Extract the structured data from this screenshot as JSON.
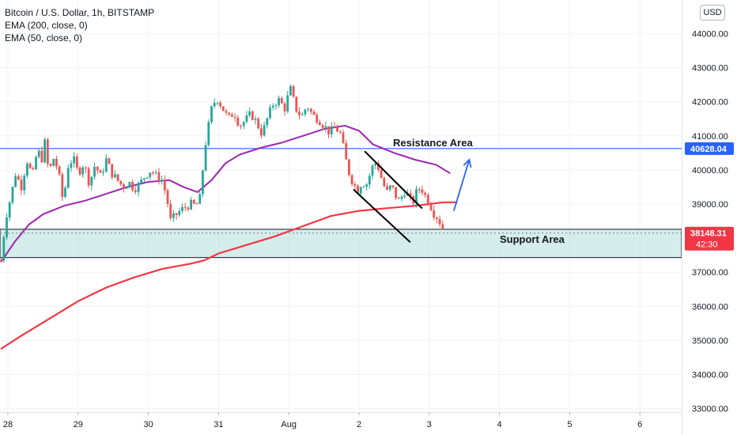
{
  "legend": {
    "title": "Bitcoin / U.S. Dollar, 1h, BITSTAMP",
    "ema200": "EMA (200, close, 0)",
    "ema50": "EMA (50, close, 0)"
  },
  "currency_button": "USD",
  "colors": {
    "up": "#26a69a",
    "down": "#ef5350",
    "ema200": "#f23645",
    "ema50": "#9c27b0",
    "resistance_line": "#2962ff",
    "support_fill": "#b2dfdb",
    "arrow": "#2962ff",
    "price_tag": "#f23645",
    "resistance_tag": "#2962ff"
  },
  "price_tags": {
    "resistance": "40628.04",
    "current_price": "38148.31",
    "countdown": "42:30"
  },
  "annotations": {
    "resistance": "Resistance Area",
    "support": "Support Area"
  },
  "chart_data": {
    "type": "candlestick",
    "x_labels": [
      "28",
      "29",
      "30",
      "31",
      "Aug",
      "2",
      "3",
      "4",
      "5",
      "6"
    ],
    "y_ticks": [
      33000,
      34000,
      35000,
      36000,
      37000,
      38000,
      39000,
      40000,
      41000,
      42000,
      43000,
      44000
    ],
    "y_tick_labels": [
      "33000.00",
      "34000.00",
      "35000.00",
      "36000.00",
      "37000.00",
      "38000.00",
      "39000.00",
      "40000.00",
      "41000.00",
      "42000.00",
      "43000.00",
      "44000.00"
    ],
    "ylim": [
      32800,
      44500
    ],
    "resistance_level": 40628.04,
    "support_zone": [
      37430,
      38260
    ],
    "current_price": 38148.31,
    "price_path": [
      [
        27.9,
        37350
      ],
      [
        27.97,
        38600
      ],
      [
        28.04,
        39200
      ],
      [
        28.11,
        39900
      ],
      [
        28.19,
        39500
      ],
      [
        28.27,
        40300
      ],
      [
        28.35,
        39800
      ],
      [
        28.42,
        40600
      ],
      [
        28.48,
        40300
      ],
      [
        28.53,
        40850
      ],
      [
        28.58,
        39900
      ],
      [
        28.66,
        40400
      ],
      [
        28.74,
        39700
      ],
      [
        28.79,
        39000
      ],
      [
        28.85,
        40100
      ],
      [
        28.93,
        40350
      ],
      [
        29.0,
        39900
      ],
      [
        29.08,
        40200
      ],
      [
        29.16,
        39600
      ],
      [
        29.24,
        40150
      ],
      [
        29.32,
        39800
      ],
      [
        29.4,
        40300
      ],
      [
        29.48,
        39900
      ],
      [
        29.56,
        39700
      ],
      [
        29.64,
        39500
      ],
      [
        29.72,
        39650
      ],
      [
        29.8,
        39450
      ],
      [
        29.88,
        39600
      ],
      [
        29.96,
        39850
      ],
      [
        30.04,
        40000
      ],
      [
        30.12,
        39800
      ],
      [
        30.2,
        39700
      ],
      [
        30.27,
        39100
      ],
      [
        30.31,
        38500
      ],
      [
        30.38,
        38650
      ],
      [
        30.45,
        38800
      ],
      [
        30.52,
        38900
      ],
      [
        30.6,
        39000
      ],
      [
        30.68,
        38950
      ],
      [
        30.74,
        39200
      ],
      [
        30.8,
        40600
      ],
      [
        30.85,
        41200
      ],
      [
        30.91,
        41900
      ],
      [
        30.98,
        42100
      ],
      [
        31.06,
        41800
      ],
      [
        31.14,
        41500
      ],
      [
        31.22,
        41700
      ],
      [
        31.3,
        41300
      ],
      [
        31.38,
        41450
      ],
      [
        31.46,
        41650
      ],
      [
        31.54,
        41400
      ],
      [
        31.62,
        41050
      ],
      [
        31.7,
        41550
      ],
      [
        31.78,
        41950
      ],
      [
        31.86,
        42050
      ],
      [
        31.94,
        41800
      ],
      [
        32.02,
        42400
      ],
      [
        32.1,
        41800
      ],
      [
        32.18,
        41550
      ],
      [
        32.26,
        41900
      ],
      [
        32.34,
        41600
      ],
      [
        32.42,
        41500
      ],
      [
        32.5,
        41300
      ],
      [
        32.58,
        41100
      ],
      [
        32.66,
        41250
      ],
      [
        32.74,
        41050
      ],
      [
        32.8,
        40400
      ],
      [
        32.86,
        39900
      ],
      [
        32.92,
        39600
      ],
      [
        32.98,
        39400
      ],
      [
        33.04,
        39650
      ],
      [
        33.1,
        39550
      ],
      [
        33.16,
        39900
      ],
      [
        33.22,
        40250
      ],
      [
        33.28,
        40050
      ],
      [
        33.34,
        39600
      ],
      [
        33.4,
        39350
      ],
      [
        33.46,
        39550
      ],
      [
        33.52,
        39250
      ],
      [
        33.58,
        39050
      ],
      [
        33.64,
        39400
      ],
      [
        33.7,
        39250
      ],
      [
        33.76,
        39000
      ],
      [
        33.82,
        39350
      ],
      [
        33.88,
        39500
      ],
      [
        33.94,
        39250
      ],
      [
        34.0,
        39050
      ],
      [
        34.06,
        38750
      ],
      [
        34.12,
        38600
      ],
      [
        34.18,
        38350
      ],
      [
        34.22,
        38150
      ]
    ],
    "series": [
      {
        "name": "EMA (200, close, 0)",
        "points": [
          [
            27.9,
            34750
          ],
          [
            28.2,
            35150
          ],
          [
            28.6,
            35650
          ],
          [
            29.0,
            36150
          ],
          [
            29.4,
            36550
          ],
          [
            29.8,
            36850
          ],
          [
            30.2,
            37100
          ],
          [
            30.6,
            37250
          ],
          [
            30.8,
            37350
          ],
          [
            31.0,
            37550
          ],
          [
            31.4,
            37800
          ],
          [
            31.8,
            38050
          ],
          [
            32.2,
            38350
          ],
          [
            32.6,
            38650
          ],
          [
            33.0,
            38800
          ],
          [
            33.4,
            38880
          ],
          [
            33.8,
            38950
          ],
          [
            34.2,
            39050
          ],
          [
            34.4,
            39050
          ]
        ]
      },
      {
        "name": "EMA (50, close, 0)",
        "points": [
          [
            27.9,
            37300
          ],
          [
            28.1,
            37900
          ],
          [
            28.3,
            38400
          ],
          [
            28.5,
            38700
          ],
          [
            28.8,
            38950
          ],
          [
            29.1,
            39100
          ],
          [
            29.4,
            39300
          ],
          [
            29.7,
            39500
          ],
          [
            30.0,
            39650
          ],
          [
            30.3,
            39700
          ],
          [
            30.5,
            39500
          ],
          [
            30.7,
            39350
          ],
          [
            30.9,
            39700
          ],
          [
            31.1,
            40200
          ],
          [
            31.3,
            40450
          ],
          [
            31.6,
            40650
          ],
          [
            31.9,
            40800
          ],
          [
            32.2,
            41000
          ],
          [
            32.5,
            41200
          ],
          [
            32.8,
            41300
          ],
          [
            33.0,
            41150
          ],
          [
            33.2,
            40750
          ],
          [
            33.5,
            40500
          ],
          [
            33.8,
            40300
          ],
          [
            34.1,
            40150
          ],
          [
            34.3,
            39900
          ]
        ]
      }
    ],
    "trendlines": [
      [
        [
          33.08,
          40550
        ],
        [
          33.9,
          38870
        ]
      ],
      [
        [
          32.92,
          39430
        ],
        [
          33.73,
          37880
        ]
      ]
    ],
    "arrow": [
      [
        34.35,
        38800
      ],
      [
        34.57,
        40300
      ]
    ]
  }
}
